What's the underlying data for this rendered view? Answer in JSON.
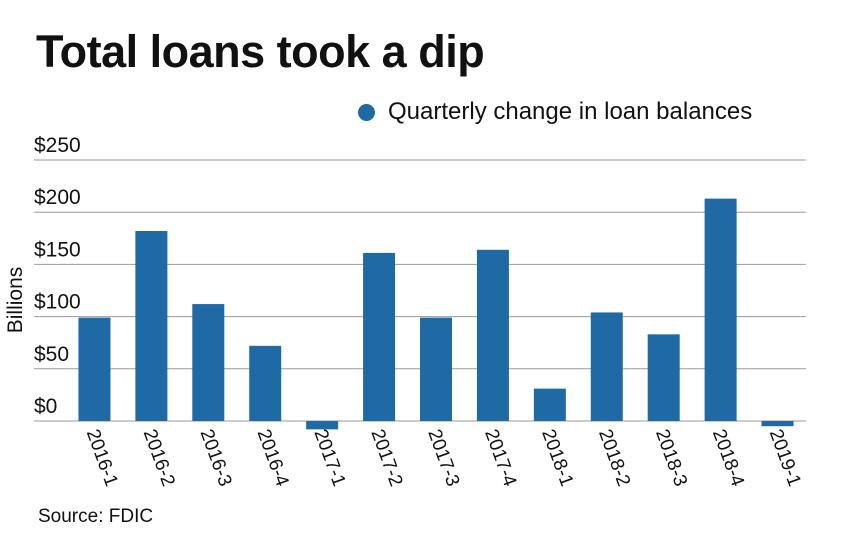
{
  "title": "Total loans took a dip",
  "legend_label": "Quarterly change in loan balances",
  "source": "Source: FDIC",
  "colors": {
    "bar": "#1f6aa5",
    "grid": "#9a9a9a",
    "text": "#111111"
  },
  "chart_data": {
    "type": "bar",
    "title": "Total loans took a dip",
    "xlabel": "",
    "ylabel": "Billions",
    "ylim": [
      0,
      250
    ],
    "yticks": [
      0,
      50,
      100,
      150,
      200,
      250
    ],
    "ytick_labels": [
      "$0",
      "$50",
      "$100",
      "$150",
      "$200",
      "$250"
    ],
    "grid": true,
    "legend_position": "top-right",
    "categories": [
      "2016-1",
      "2016-2",
      "2016-3",
      "2016-4",
      "2017-1",
      "2017-2",
      "2017-3",
      "2017-4",
      "2018-1",
      "2018-2",
      "2018-3",
      "2018-4",
      "2019-1"
    ],
    "series": [
      {
        "name": "Quarterly change in loan balances",
        "values": [
          99,
          182,
          112,
          72,
          -8,
          161,
          99,
          164,
          31,
          104,
          83,
          213,
          -5
        ]
      }
    ]
  }
}
